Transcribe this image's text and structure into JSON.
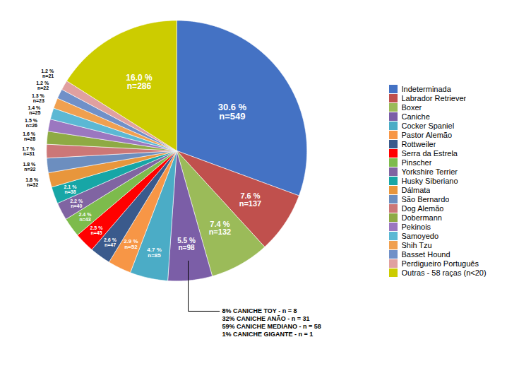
{
  "chart_data": {
    "type": "pie",
    "categories": [
      "Indeterminada",
      "Labrador Retriever",
      "Boxer",
      "Caniche",
      "Cocker Spaniel",
      "Pastor Alemão",
      "Rottweiler",
      "Serra da Estrela",
      "Pinscher",
      "Yorkshire Terrier",
      "Husky Siberiano",
      "Dálmata",
      "São Bernardo",
      "Dog Alemão",
      "Dobermann",
      "Pekinois",
      "Samoyedo",
      "Shih Tzu",
      "Basset Hound",
      "Perdigueiro Português",
      "Outras - 58 raças (n<20)"
    ],
    "values": [
      30.6,
      7.6,
      7.4,
      5.5,
      4.7,
      2.9,
      2.6,
      2.5,
      2.4,
      2.2,
      2.1,
      1.8,
      1.8,
      1.7,
      1.6,
      1.5,
      1.4,
      1.3,
      1.2,
      1.2,
      16.0
    ],
    "value_labels": [
      "30.6 %\nn=549",
      "7.6 %\nn=137",
      "7.4 %\nn=132",
      "5.5 %\nn=98",
      "4.7 %\nn=85",
      "2.9 %\nn=52",
      "2.6 %\nn=47",
      "2.5 %\nn=45",
      "2.4 %\nn=43",
      "2.2 %\nn=40",
      "2.1 %\nn=38",
      "1.8 %\nn=32",
      "1.8 %\nn=32",
      "1.7 %\nn=31",
      "1.6 %\nn=28",
      "1.5 %\nn=26",
      "1.4 %\nn=25",
      "1.3 %\nn=23",
      "1.2 %\nn=22",
      "1.2 %\nn=21",
      "16.0 %\nn=286"
    ],
    "colors": [
      "#4472C4",
      "#C0504D",
      "#9BBB59",
      "#7B5EA7",
      "#4BACC6",
      "#F79646",
      "#3A5A8C",
      "#FF0000",
      "#7DBB4C",
      "#8064A2",
      "#17A6A6",
      "#E8963C",
      "#6C8EBF",
      "#CC7777",
      "#8EAA44",
      "#9B77C0",
      "#5BB8D4",
      "#F0A050",
      "#7090C8",
      "#E0A0A0",
      "#CCCC00"
    ],
    "data_labels": true,
    "legend": "right",
    "annotations": [
      {
        "text": "8% CANICHE TOY - n = 8\n32% CANICHE ANÃO - n = 31\n59% CANICHE MEDIANO - n = 58\n1% CANICHE GIGANTE - n = 1",
        "category": "Caniche"
      }
    ]
  }
}
